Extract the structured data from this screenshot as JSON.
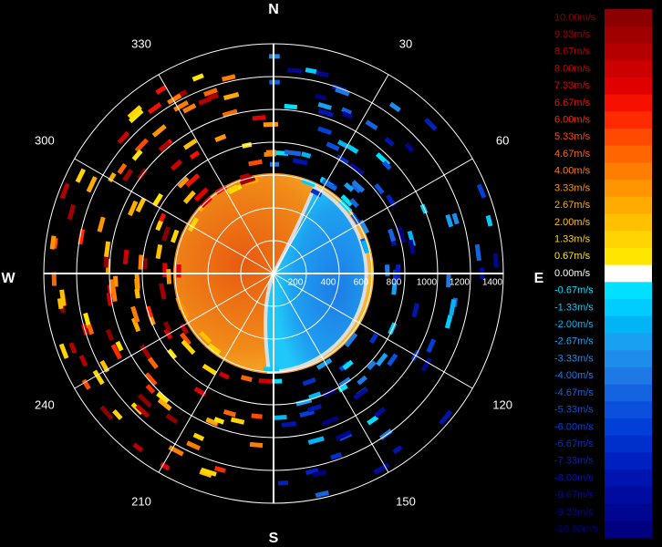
{
  "compass": {
    "north": "N",
    "east": "E",
    "south": "S",
    "west": "W"
  },
  "azimuth_labels": [
    "30",
    "60",
    "120",
    "150",
    "210",
    "240",
    "300",
    "330"
  ],
  "range_labels": [
    "200",
    "400",
    "600",
    "800",
    "1000",
    "1200",
    "1400"
  ],
  "colorbar": [
    {
      "label": "10.00m/s",
      "color": "#8b0000"
    },
    {
      "label": "9.33m/s",
      "color": "#a00000"
    },
    {
      "label": "8.67m/s",
      "color": "#b50000"
    },
    {
      "label": "8.00m/s",
      "color": "#cc0000"
    },
    {
      "label": "7.33m/s",
      "color": "#e00000"
    },
    {
      "label": "6.67m/s",
      "color": "#f51000"
    },
    {
      "label": "6.00m/s",
      "color": "#ff2a00"
    },
    {
      "label": "5.33m/s",
      "color": "#ff4a00"
    },
    {
      "label": "4.67m/s",
      "color": "#ff6600"
    },
    {
      "label": "4.00m/s",
      "color": "#ff7d00"
    },
    {
      "label": "3.33m/s",
      "color": "#ff9500"
    },
    {
      "label": "2.67m/s",
      "color": "#ffab00"
    },
    {
      "label": "2.00m/s",
      "color": "#ffc000"
    },
    {
      "label": "1.33m/s",
      "color": "#ffd400"
    },
    {
      "label": "0.67m/s",
      "color": "#ffe600"
    },
    {
      "label": "0.00m/s",
      "color": "#ffffff"
    },
    {
      "label": "-0.67m/s",
      "color": "#00e0ff"
    },
    {
      "label": "-1.33m/s",
      "color": "#00ccff"
    },
    {
      "label": "-2.00m/s",
      "color": "#00b4f5"
    },
    {
      "label": "-2.67m/s",
      "color": "#1aa0f0"
    },
    {
      "label": "-3.33m/s",
      "color": "#1e8ceb"
    },
    {
      "label": "-4.00m/s",
      "color": "#1e78e6"
    },
    {
      "label": "-4.67m/s",
      "color": "#1464e0"
    },
    {
      "label": "-5.33m/s",
      "color": "#0a50dc"
    },
    {
      "label": "-6.00m/s",
      "color": "#0040d8"
    },
    {
      "label": "-6.67m/s",
      "color": "#0030cc"
    },
    {
      "label": "-7.33m/s",
      "color": "#0020c0"
    },
    {
      "label": "-8.00m/s",
      "color": "#0014b0"
    },
    {
      "label": "-8.67m/s",
      "color": "#000ca0"
    },
    {
      "label": "-9.33m/s",
      "color": "#000690"
    },
    {
      "label": "-10.00m/s",
      "color": "#000080"
    }
  ]
}
